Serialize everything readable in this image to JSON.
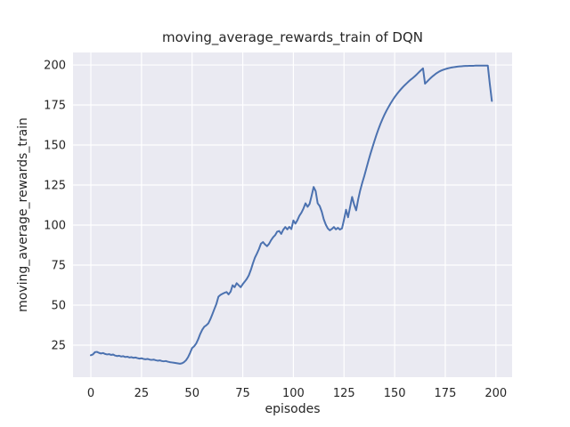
{
  "chart_data": {
    "type": "line",
    "title": "moving_average_rewards_train of DQN",
    "xlabel": "episodes",
    "ylabel": "moving_average_rewards_train",
    "xlim": [
      -8.8,
      208.0
    ],
    "ylim": [
      5.0,
      207.8
    ],
    "xticks": [
      0,
      25,
      50,
      75,
      100,
      125,
      150,
      175,
      200
    ],
    "yticks": [
      25,
      50,
      75,
      100,
      125,
      150,
      175,
      200
    ],
    "grid": true,
    "legend_position": "none",
    "style": "seaborn-darkgrid",
    "colors": {
      "line": "#4c72b0",
      "axes_background": "#eaeaf2",
      "grid": "#ffffff",
      "figure_background": "#ffffff",
      "text": "#262626"
    },
    "x": [
      0,
      1,
      2,
      3,
      4,
      5,
      6,
      7,
      8,
      9,
      10,
      11,
      12,
      13,
      14,
      15,
      16,
      17,
      18,
      19,
      20,
      21,
      22,
      23,
      24,
      25,
      26,
      27,
      28,
      29,
      30,
      31,
      32,
      33,
      34,
      35,
      36,
      37,
      38,
      39,
      40,
      41,
      42,
      43,
      44,
      45,
      46,
      47,
      48,
      49,
      50,
      51,
      52,
      53,
      54,
      55,
      56,
      57,
      58,
      59,
      60,
      61,
      62,
      63,
      64,
      65,
      66,
      67,
      68,
      69,
      70,
      71,
      72,
      73,
      74,
      75,
      76,
      77,
      78,
      79,
      80,
      81,
      82,
      83,
      84,
      85,
      86,
      87,
      88,
      89,
      90,
      91,
      92,
      93,
      94,
      95,
      96,
      97,
      98,
      99,
      100,
      101,
      102,
      103,
      104,
      105,
      106,
      107,
      108,
      109,
      110,
      111,
      112,
      113,
      114,
      115,
      116,
      117,
      118,
      119,
      120,
      121,
      122,
      123,
      124,
      125,
      126,
      127,
      128,
      129,
      130,
      131,
      132,
      133,
      134,
      135,
      136,
      137,
      138,
      139,
      140,
      141,
      142,
      143,
      144,
      145,
      146,
      147,
      148,
      149,
      150,
      151,
      152,
      153,
      154,
      155,
      156,
      157,
      158,
      159,
      160,
      161,
      162,
      163,
      164,
      165,
      166,
      167,
      168,
      169,
      170,
      171,
      172,
      173,
      174,
      175,
      176,
      177,
      178,
      179,
      180,
      181,
      182,
      183,
      184,
      185,
      186,
      187,
      188,
      189,
      190,
      191,
      192,
      193,
      194,
      195,
      196,
      197,
      198
    ],
    "series": [
      {
        "name": "moving_average_rewards_train",
        "values": [
          18.7,
          19.2,
          20.6,
          20.8,
          20.2,
          19.8,
          20.1,
          19.5,
          19.2,
          19.4,
          18.9,
          19.2,
          18.5,
          18.2,
          18.4,
          17.9,
          18.1,
          17.6,
          17.8,
          17.3,
          17.5,
          17.1,
          17.3,
          16.9,
          16.6,
          16.8,
          16.4,
          16.2,
          16.4,
          16.0,
          15.8,
          16.0,
          15.6,
          15.3,
          15.5,
          15.1,
          14.9,
          15.1,
          14.7,
          14.4,
          14.2,
          14.0,
          13.8,
          13.6,
          13.4,
          13.7,
          14.4,
          15.6,
          17.5,
          20.2,
          23.2,
          24.3,
          26.0,
          28.7,
          32.0,
          34.6,
          36.5,
          37.4,
          38.6,
          41.2,
          44.3,
          47.6,
          50.8,
          55.3,
          56.4,
          57.1,
          57.7,
          58.2,
          56.7,
          58.4,
          62.4,
          61.2,
          63.7,
          62.4,
          61.2,
          63.1,
          64.7,
          66.4,
          68.6,
          72.0,
          76.0,
          79.6,
          82.2,
          85.0,
          88.4,
          89.4,
          87.9,
          86.8,
          88.3,
          90.6,
          92.4,
          93.7,
          95.9,
          96.3,
          94.5,
          97.1,
          98.8,
          97.3,
          98.9,
          97.5,
          102.9,
          100.9,
          103.1,
          105.9,
          107.8,
          110.4,
          113.6,
          111.4,
          113.2,
          118.3,
          123.8,
          121.2,
          113.6,
          111.9,
          108.4,
          103.6,
          100.3,
          97.9,
          96.7,
          97.6,
          98.8,
          97.3,
          98.3,
          97.2,
          97.9,
          103.4,
          109.6,
          104.9,
          111.2,
          117.6,
          112.8,
          109.2,
          116.1,
          121.7,
          126.4,
          130.6,
          135.2,
          139.9,
          144.3,
          148.4,
          152.4,
          156.3,
          159.9,
          163.2,
          166.2,
          169.0,
          171.5,
          173.8,
          176.0,
          178.0,
          179.9,
          181.6,
          183.2,
          184.7,
          186.1,
          187.4,
          188.6,
          189.8,
          190.9,
          191.9,
          193.0,
          194.2,
          195.5,
          196.7,
          197.9,
          188.3,
          189.6,
          190.9,
          192.1,
          193.2,
          194.2,
          195.1,
          195.9,
          196.5,
          197.0,
          197.4,
          197.8,
          198.1,
          198.4,
          198.6,
          198.8,
          199.0,
          199.1,
          199.2,
          199.3,
          199.4,
          199.4,
          199.5,
          199.5,
          199.5,
          199.6,
          199.6,
          199.6,
          199.6,
          199.6,
          199.6,
          199.6,
          188.0,
          177.5
        ]
      }
    ]
  }
}
